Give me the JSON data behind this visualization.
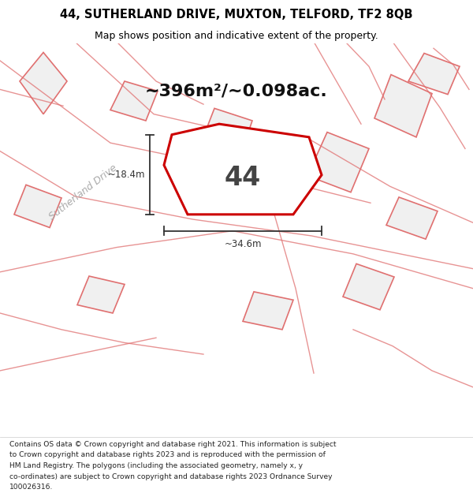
{
  "title_line1": "44, SUTHERLAND DRIVE, MUXTON, TELFORD, TF2 8QB",
  "title_line2": "Map shows position and indicative extent of the property.",
  "area_text": "~396m²/~0.098ac.",
  "label_number": "44",
  "dim_width": "~34.6m",
  "dim_height": "~18.4m",
  "footer_lines": [
    "Contains OS data © Crown copyright and database right 2021. This information is subject",
    "to Crown copyright and database rights 2023 and is reproduced with the permission of",
    "HM Land Registry. The polygons (including the associated geometry, namely x, y",
    "co-ordinates) are subject to Crown copyright and database rights 2023 Ordnance Survey",
    "100026316."
  ],
  "bg_color": "#ffffff",
  "bg_poly_color": "#f0f0f0",
  "road_color": "#e07070",
  "highlight_color": "#cc0000",
  "dim_color": "#333333",
  "road_label_color": "#aaaaaa",
  "area_text_color": "#111111",
  "number_color": "#444444",
  "footer_color": "#222222"
}
